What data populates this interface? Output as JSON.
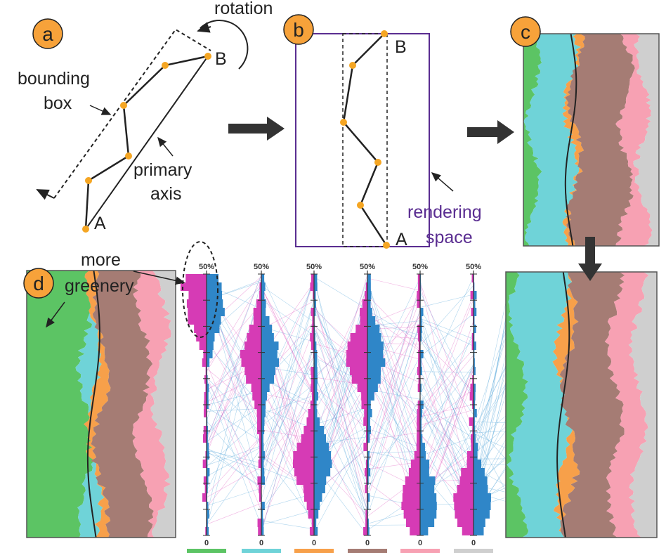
{
  "panels": {
    "a": {
      "label": "a",
      "rotation": "rotation",
      "bounding_box": [
        "bounding",
        "box"
      ],
      "primary_axis": [
        "primary",
        "axis"
      ],
      "point_a": "A",
      "point_b": "B"
    },
    "b": {
      "label": "b",
      "point_a": "A",
      "point_b": "B",
      "rendering_space": [
        "rendering",
        "space"
      ]
    },
    "c": {
      "label": "c"
    },
    "d": {
      "label": "d",
      "annotation": [
        "more",
        "greenery"
      ],
      "axes": [
        {
          "top": "50%",
          "bottom": "0"
        },
        {
          "top": "50%",
          "bottom": "0"
        },
        {
          "top": "50%",
          "bottom": "0"
        },
        {
          "top": "50%",
          "bottom": "0"
        },
        {
          "top": "50%",
          "bottom": "0"
        },
        {
          "top": "50%",
          "bottom": "0"
        }
      ]
    }
  }
}
